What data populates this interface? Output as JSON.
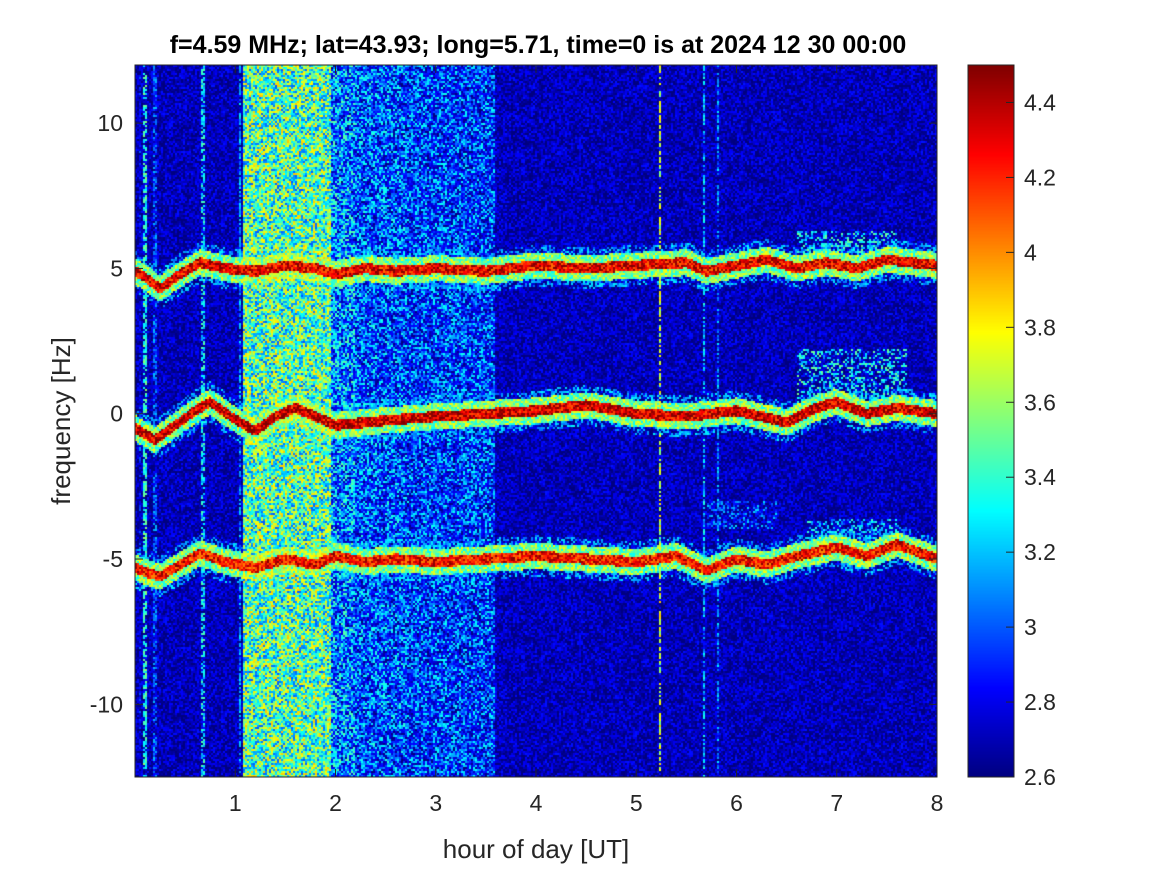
{
  "chart_data": {
    "type": "heatmap",
    "title": "f=4.59 MHz;  lat=43.93; long=5.71, time=0 is at 2024 12 30 00:00",
    "xlabel": "hour of day [UT]",
    "ylabel": "frequency [Hz]",
    "xlim": [
      0,
      8
    ],
    "ylim": [
      -12.5,
      12
    ],
    "x_ticks": [
      1,
      2,
      3,
      4,
      5,
      6,
      7,
      8
    ],
    "x_tick_labels": [
      "1",
      "2",
      "3",
      "4",
      "5",
      "6",
      "7",
      "8"
    ],
    "y_ticks": [
      10,
      5,
      0,
      -5,
      -10
    ],
    "y_tick_labels": [
      "10",
      "5",
      "0",
      "-5",
      "-10"
    ],
    "colorbar": {
      "colormap": "jet",
      "limits": [
        2.6,
        4.5
      ],
      "ticks": [
        4.4,
        4.2,
        4,
        3.8,
        3.6,
        3.4,
        3.2,
        3,
        2.8,
        2.6
      ],
      "tick_labels": [
        "4.4",
        "4.2",
        "4",
        "3.8",
        "3.6",
        "3.4",
        "3.2",
        "3",
        "2.8",
        "2.6"
      ]
    },
    "background_level": 2.7,
    "traces": [
      {
        "x": [
          0.0,
          0.1,
          0.25,
          0.45,
          0.65,
          0.9,
          1.2,
          1.5,
          1.8,
          2.0,
          2.3,
          2.6,
          3.0,
          3.5,
          4.0,
          4.5,
          5.0,
          5.5,
          5.7,
          6.0,
          6.3,
          6.6,
          6.9,
          7.2,
          7.5,
          8.0
        ],
        "y": [
          4.9,
          4.7,
          4.3,
          4.8,
          5.2,
          5.0,
          4.9,
          5.1,
          5.0,
          4.8,
          5.0,
          4.9,
          5.0,
          4.9,
          5.1,
          5.0,
          5.1,
          5.2,
          4.9,
          5.1,
          5.3,
          5.0,
          5.2,
          5.0,
          5.3,
          5.1
        ],
        "level": 4.3
      },
      {
        "x": [
          0.0,
          0.1,
          0.2,
          0.4,
          0.6,
          0.75,
          1.0,
          1.2,
          1.4,
          1.6,
          1.8,
          2.0,
          2.3,
          2.6,
          3.0,
          3.5,
          4.0,
          4.5,
          5.0,
          5.5,
          6.0,
          6.5,
          6.8,
          7.0,
          7.3,
          7.6,
          8.0
        ],
        "y": [
          -0.5,
          -0.7,
          -0.9,
          -0.4,
          0.1,
          0.4,
          -0.2,
          -0.6,
          -0.1,
          0.2,
          -0.1,
          -0.4,
          -0.3,
          -0.2,
          -0.1,
          0.0,
          0.1,
          0.3,
          0.0,
          -0.1,
          0.1,
          -0.3,
          0.2,
          0.4,
          0.0,
          0.2,
          0.0
        ],
        "level": 4.35
      },
      {
        "x": [
          0.0,
          0.15,
          0.25,
          0.45,
          0.65,
          0.9,
          1.2,
          1.5,
          1.8,
          2.0,
          2.3,
          2.6,
          3.0,
          3.5,
          4.0,
          4.5,
          5.0,
          5.4,
          5.7,
          6.0,
          6.3,
          6.6,
          7.0,
          7.3,
          7.6,
          8.0
        ],
        "y": [
          -5.3,
          -5.5,
          -5.6,
          -5.2,
          -4.8,
          -5.1,
          -5.3,
          -5.0,
          -5.2,
          -4.9,
          -5.1,
          -5.0,
          -5.1,
          -5.0,
          -4.9,
          -5.0,
          -5.1,
          -4.9,
          -5.4,
          -5.0,
          -5.2,
          -4.9,
          -4.6,
          -4.9,
          -4.5,
          -5.0
        ],
        "level": 4.25
      }
    ],
    "noise_bands": [
      {
        "x": [
          1.08,
          1.95
        ],
        "level": 3.45
      },
      {
        "x": [
          1.95,
          2.2
        ],
        "level": 3.05
      },
      {
        "x": [
          2.2,
          2.7
        ],
        "level": 2.95
      },
      {
        "x": [
          2.7,
          3.6
        ],
        "level": 2.9
      }
    ],
    "scatter_clusters": [
      {
        "x": [
          6.6,
          7.7
        ],
        "y": [
          0.4,
          2.2
        ],
        "level": 3.3
      },
      {
        "x": [
          6.6,
          7.6
        ],
        "y": [
          5.5,
          6.3
        ],
        "level": 3.3
      },
      {
        "x": [
          6.7,
          7.6
        ],
        "y": [
          -4.6,
          -3.6
        ],
        "level": 3.2
      },
      {
        "x": [
          5.7,
          6.4
        ],
        "y": [
          -4.0,
          -3.0
        ],
        "level": 3.0
      }
    ],
    "vertical_streaks": [
      {
        "x": 0.05,
        "level": 3.0
      },
      {
        "x": 0.1,
        "level": 3.6
      },
      {
        "x": 0.2,
        "level": 3.2
      },
      {
        "x": 0.68,
        "level": 3.5
      },
      {
        "x": 1.05,
        "level": 3.3
      },
      {
        "x": 5.23,
        "level": 3.9
      },
      {
        "x": 5.68,
        "level": 3.4
      },
      {
        "x": 5.82,
        "level": 3.3
      }
    ]
  }
}
